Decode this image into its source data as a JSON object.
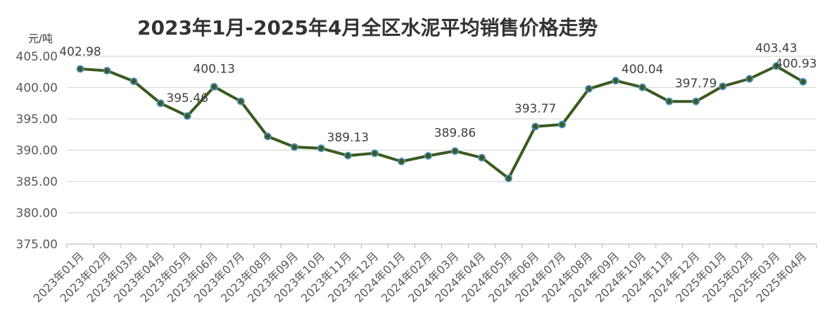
{
  "chart_data": {
    "type": "line",
    "title": "2023年1月-2025年4月全区水泥平均销售价格走势",
    "unit": "元/吨",
    "ylim": [
      375,
      405
    ],
    "yticks": [
      "375.00",
      "380.00",
      "385.00",
      "390.00",
      "395.00",
      "400.00",
      "405.00"
    ],
    "grid": true,
    "legend": "none",
    "line_color": "#3a5a1f",
    "marker_color": "#4a90c4",
    "categories": [
      "2023年01月",
      "2023年02月",
      "2023年03月",
      "2023年04月",
      "2023年05月",
      "2023年06月",
      "2023年07月",
      "2023年08月",
      "2023年09月",
      "2023年10月",
      "2023年11月",
      "2023年12月",
      "2024年01月",
      "2024年02月",
      "2024年03月",
      "2024年04月",
      "2024年05月",
      "2024年06月",
      "2024年07月",
      "2024年08月",
      "2024年09月",
      "2024年10月",
      "2024年11月",
      "2024年12月",
      "2025年01月",
      "2025年02月",
      "2025年03月",
      "2025年04月"
    ],
    "values": [
      402.98,
      402.7,
      401.0,
      397.5,
      395.46,
      400.13,
      397.8,
      392.2,
      390.5,
      390.3,
      389.13,
      389.5,
      388.2,
      389.1,
      389.86,
      388.8,
      385.5,
      393.77,
      394.1,
      399.8,
      401.1,
      400.04,
      397.79,
      397.79,
      400.2,
      401.4,
      403.43,
      400.93
    ],
    "data_labels": [
      {
        "index": 0,
        "text": "402.98"
      },
      {
        "index": 4,
        "text": "395.46"
      },
      {
        "index": 5,
        "text": "400.13"
      },
      {
        "index": 10,
        "text": "389.13"
      },
      {
        "index": 14,
        "text": "389.86"
      },
      {
        "index": 17,
        "text": "393.77"
      },
      {
        "index": 21,
        "text": "400.04"
      },
      {
        "index": 23,
        "text": "397.79"
      },
      {
        "index": 26,
        "text": "403.43"
      },
      {
        "index": 27,
        "text": "400.93"
      }
    ]
  }
}
